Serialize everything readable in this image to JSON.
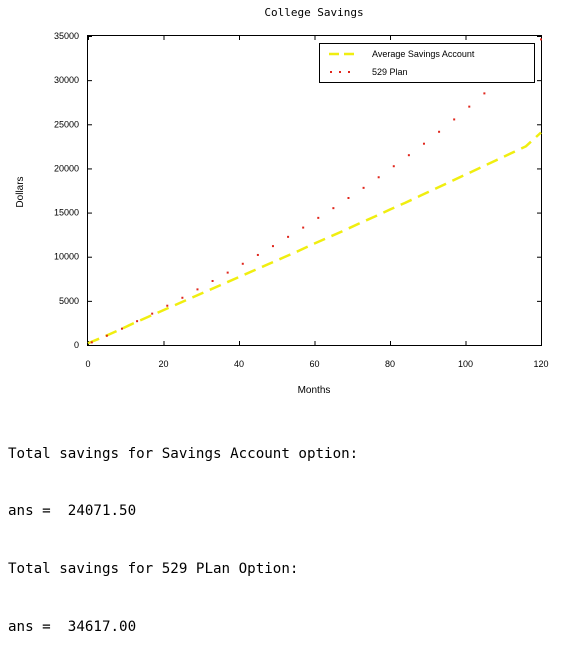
{
  "chart_data": {
    "type": "line",
    "title": "College Savings",
    "xlabel": "Months",
    "ylabel": "Dollars",
    "xlim": [
      0,
      120
    ],
    "ylim": [
      0,
      35000
    ],
    "xticks": [
      0,
      20,
      40,
      60,
      80,
      100,
      120
    ],
    "yticks": [
      0,
      5000,
      10000,
      15000,
      20000,
      25000,
      30000,
      35000
    ],
    "grid": false,
    "legend_position": "top-right",
    "series": [
      {
        "name": "Average Savings Account",
        "style": "dashed",
        "color": "#f0ee10",
        "x": [
          0,
          4,
          8,
          12,
          16,
          20,
          24,
          28,
          32,
          36,
          40,
          44,
          48,
          52,
          56,
          60,
          64,
          68,
          72,
          76,
          80,
          84,
          88,
          92,
          96,
          100,
          104,
          108,
          112,
          116,
          120
        ],
        "y": [
          200,
          900,
          1650,
          2450,
          3200,
          3950,
          4700,
          5450,
          6200,
          6950,
          7700,
          8450,
          9200,
          9950,
          10700,
          11500,
          12250,
          13000,
          13800,
          14550,
          15350,
          16100,
          16900,
          17700,
          18500,
          19300,
          20100,
          20900,
          21700,
          22500,
          24071.5
        ]
      },
      {
        "name": "529 Plan",
        "style": "dotted",
        "color": "#e0261c",
        "x": [
          1,
          5,
          9,
          13,
          17,
          21,
          25,
          29,
          33,
          37,
          41,
          45,
          49,
          53,
          57,
          61,
          65,
          69,
          73,
          77,
          81,
          85,
          89,
          93,
          97,
          101,
          105,
          109,
          113,
          117,
          120
        ],
        "y": [
          300,
          1050,
          1850,
          2700,
          3550,
          4450,
          5350,
          6300,
          7250,
          8200,
          9200,
          10200,
          11200,
          12250,
          13300,
          14400,
          15500,
          16650,
          17800,
          19000,
          20250,
          21500,
          22800,
          24150,
          25550,
          27000,
          28500,
          30050,
          31650,
          33300,
          34617
        ]
      }
    ]
  },
  "console": {
    "lines": [
      "Total savings for Savings Account option:",
      "ans =  24071.50",
      "Total savings for 529 PLan Option:",
      "ans =  34617.00"
    ]
  }
}
